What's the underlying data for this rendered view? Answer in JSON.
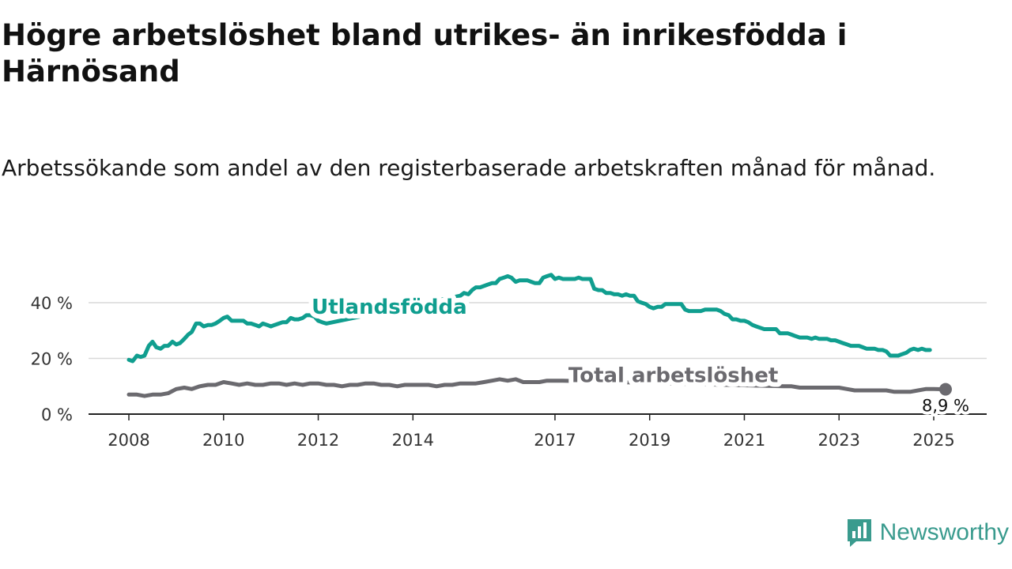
{
  "header": {
    "title": "Högre arbetslöshet bland utrikes- än inrikesfödda i Härnösand",
    "subtitle": "Arbetssökande som andel av den registerbaserade arbetskraften månad för månad."
  },
  "brand": {
    "name": "Newsworthy",
    "color": "#3a9b8e",
    "icon": "bar-chart-logo-icon"
  },
  "chart_data": {
    "type": "line",
    "ylim": [
      0,
      55
    ],
    "xlim": [
      2008.0,
      2025.6
    ],
    "grid": true,
    "y_ticks": [
      0,
      20,
      40
    ],
    "y_tick_labels": [
      "0 %",
      "20 %",
      "40 %"
    ],
    "x_ticks": [
      2008,
      2010,
      2012,
      2014,
      2017,
      2019,
      2021,
      2023,
      2025
    ],
    "x_tick_labels": [
      "2008",
      "2010",
      "2012",
      "2014",
      "2017",
      "2019",
      "2021",
      "2023",
      "2025"
    ],
    "series": [
      {
        "name": "Utlandsfödda",
        "color": "#109e8f",
        "points": [
          [
            2008.0,
            19.5
          ],
          [
            2008.08,
            19.0
          ],
          [
            2008.17,
            21.0
          ],
          [
            2008.25,
            20.5
          ],
          [
            2008.33,
            21.0
          ],
          [
            2008.42,
            24.5
          ],
          [
            2008.5,
            26.0
          ],
          [
            2008.58,
            24.0
          ],
          [
            2008.67,
            23.5
          ],
          [
            2008.75,
            24.5
          ],
          [
            2008.83,
            24.5
          ],
          [
            2008.92,
            26.0
          ],
          [
            2009.0,
            25.0
          ],
          [
            2009.08,
            25.5
          ],
          [
            2009.17,
            27.0
          ],
          [
            2009.25,
            28.5
          ],
          [
            2009.33,
            29.5
          ],
          [
            2009.42,
            32.5
          ],
          [
            2009.5,
            32.5
          ],
          [
            2009.58,
            31.5
          ],
          [
            2009.67,
            32.0
          ],
          [
            2009.75,
            32.0
          ],
          [
            2009.83,
            32.5
          ],
          [
            2009.92,
            33.5
          ],
          [
            2010.0,
            34.5
          ],
          [
            2010.08,
            35.0
          ],
          [
            2010.17,
            33.5
          ],
          [
            2010.25,
            33.5
          ],
          [
            2010.33,
            33.5
          ],
          [
            2010.42,
            33.5
          ],
          [
            2010.5,
            32.5
          ],
          [
            2010.58,
            32.5
          ],
          [
            2010.67,
            32.0
          ],
          [
            2010.75,
            31.5
          ],
          [
            2010.83,
            32.5
          ],
          [
            2010.92,
            32.0
          ],
          [
            2011.0,
            31.5
          ],
          [
            2011.08,
            32.0
          ],
          [
            2011.17,
            32.5
          ],
          [
            2011.25,
            33.0
          ],
          [
            2011.33,
            33.0
          ],
          [
            2011.42,
            34.5
          ],
          [
            2011.5,
            34.0
          ],
          [
            2011.58,
            34.0
          ],
          [
            2011.67,
            34.5
          ],
          [
            2011.75,
            35.5
          ],
          [
            2011.83,
            35.5
          ],
          [
            2011.92,
            35.0
          ],
          [
            2012.0,
            33.5
          ],
          [
            2012.08,
            33.0
          ],
          [
            2012.17,
            32.5
          ],
          [
            2015.0,
            42.5
          ],
          [
            2015.08,
            43.5
          ],
          [
            2015.17,
            43.0
          ],
          [
            2015.25,
            44.5
          ],
          [
            2015.33,
            45.5
          ],
          [
            2015.42,
            45.5
          ],
          [
            2015.5,
            46.0
          ],
          [
            2015.58,
            46.5
          ],
          [
            2015.67,
            47.0
          ],
          [
            2015.75,
            47.0
          ],
          [
            2015.83,
            48.5
          ],
          [
            2015.92,
            49.0
          ],
          [
            2016.0,
            49.5
          ],
          [
            2016.08,
            49.0
          ],
          [
            2016.17,
            47.5
          ],
          [
            2016.25,
            48.0
          ],
          [
            2016.33,
            48.0
          ],
          [
            2016.42,
            48.0
          ],
          [
            2016.5,
            47.5
          ],
          [
            2016.58,
            47.0
          ],
          [
            2016.67,
            47.0
          ],
          [
            2016.75,
            49.0
          ],
          [
            2016.83,
            49.5
          ],
          [
            2016.92,
            50.0
          ],
          [
            2017.0,
            48.5
          ],
          [
            2017.08,
            49.0
          ],
          [
            2017.17,
            48.5
          ],
          [
            2017.25,
            48.5
          ],
          [
            2017.33,
            48.5
          ],
          [
            2017.42,
            48.5
          ],
          [
            2017.5,
            49.0
          ],
          [
            2017.58,
            48.5
          ],
          [
            2017.67,
            48.5
          ],
          [
            2017.75,
            48.5
          ],
          [
            2017.83,
            45.0
          ],
          [
            2017.92,
            44.5
          ],
          [
            2018.0,
            44.5
          ],
          [
            2018.08,
            43.5
          ],
          [
            2018.17,
            43.5
          ],
          [
            2018.25,
            43.0
          ],
          [
            2018.33,
            43.0
          ],
          [
            2018.42,
            42.5
          ],
          [
            2018.5,
            43.0
          ],
          [
            2018.58,
            42.5
          ],
          [
            2018.67,
            42.5
          ],
          [
            2018.75,
            40.5
          ],
          [
            2018.83,
            40.0
          ],
          [
            2018.92,
            39.5
          ],
          [
            2019.0,
            38.5
          ],
          [
            2019.08,
            38.0
          ],
          [
            2019.17,
            38.5
          ],
          [
            2019.25,
            38.5
          ],
          [
            2019.33,
            39.5
          ],
          [
            2019.42,
            39.5
          ],
          [
            2019.5,
            39.5
          ],
          [
            2019.58,
            39.5
          ],
          [
            2019.67,
            39.5
          ],
          [
            2019.75,
            37.5
          ],
          [
            2019.83,
            37.0
          ],
          [
            2019.92,
            37.0
          ],
          [
            2020.0,
            37.0
          ],
          [
            2020.08,
            37.0
          ],
          [
            2020.17,
            37.5
          ],
          [
            2020.25,
            37.5
          ],
          [
            2020.33,
            37.5
          ],
          [
            2020.42,
            37.5
          ],
          [
            2020.5,
            37.0
          ],
          [
            2020.58,
            36.0
          ],
          [
            2020.67,
            35.5
          ],
          [
            2020.75,
            34.0
          ],
          [
            2020.83,
            34.0
          ],
          [
            2020.92,
            33.5
          ],
          [
            2021.0,
            33.5
          ],
          [
            2021.08,
            33.0
          ],
          [
            2021.17,
            32.0
          ],
          [
            2021.25,
            31.5
          ],
          [
            2021.33,
            31.0
          ],
          [
            2021.42,
            30.5
          ],
          [
            2021.5,
            30.5
          ],
          [
            2021.58,
            30.5
          ],
          [
            2021.67,
            30.5
          ],
          [
            2021.75,
            29.0
          ],
          [
            2021.83,
            29.0
          ],
          [
            2021.92,
            29.0
          ],
          [
            2022.0,
            28.5
          ],
          [
            2022.08,
            28.0
          ],
          [
            2022.17,
            27.5
          ],
          [
            2022.25,
            27.5
          ],
          [
            2022.33,
            27.5
          ],
          [
            2022.42,
            27.0
          ],
          [
            2022.5,
            27.5
          ],
          [
            2022.58,
            27.0
          ],
          [
            2022.67,
            27.0
          ],
          [
            2022.75,
            27.0
          ],
          [
            2022.83,
            26.5
          ],
          [
            2022.92,
            26.5
          ],
          [
            2023.0,
            26.0
          ],
          [
            2023.08,
            25.5
          ],
          [
            2023.17,
            25.0
          ],
          [
            2023.25,
            24.5
          ],
          [
            2023.33,
            24.5
          ],
          [
            2023.42,
            24.5
          ],
          [
            2023.5,
            24.0
          ],
          [
            2023.58,
            23.5
          ],
          [
            2023.67,
            23.5
          ],
          [
            2023.75,
            23.5
          ],
          [
            2023.83,
            23.0
          ],
          [
            2023.92,
            23.0
          ],
          [
            2024.0,
            22.5
          ],
          [
            2024.08,
            21.0
          ],
          [
            2024.17,
            21.0
          ],
          [
            2024.25,
            21.0
          ],
          [
            2024.33,
            21.5
          ],
          [
            2024.42,
            22.0
          ],
          [
            2024.5,
            23.0
          ],
          [
            2024.58,
            23.5
          ],
          [
            2024.67,
            23.0
          ],
          [
            2024.75,
            23.5
          ],
          [
            2024.83,
            23.0
          ],
          [
            2024.92,
            23.0
          ]
        ]
      },
      {
        "name": "Total arbetslöshet",
        "color": "#6b6a6f",
        "points": [
          [
            2008.0,
            7.0
          ],
          [
            2008.17,
            7.0
          ],
          [
            2008.33,
            6.5
          ],
          [
            2008.5,
            7.0
          ],
          [
            2008.67,
            7.0
          ],
          [
            2008.83,
            7.5
          ],
          [
            2009.0,
            9.0
          ],
          [
            2009.17,
            9.5
          ],
          [
            2009.33,
            9.0
          ],
          [
            2009.5,
            10.0
          ],
          [
            2009.67,
            10.5
          ],
          [
            2009.83,
            10.5
          ],
          [
            2010.0,
            11.5
          ],
          [
            2010.17,
            11.0
          ],
          [
            2010.33,
            10.5
          ],
          [
            2010.5,
            11.0
          ],
          [
            2010.67,
            10.5
          ],
          [
            2010.83,
            10.5
          ],
          [
            2011.0,
            11.0
          ],
          [
            2011.17,
            11.0
          ],
          [
            2011.33,
            10.5
          ],
          [
            2011.5,
            11.0
          ],
          [
            2011.67,
            10.5
          ],
          [
            2011.83,
            11.0
          ],
          [
            2012.0,
            11.0
          ],
          [
            2012.17,
            10.5
          ],
          [
            2012.33,
            10.5
          ],
          [
            2012.5,
            10.0
          ],
          [
            2012.67,
            10.5
          ],
          [
            2012.83,
            10.5
          ],
          [
            2013.0,
            11.0
          ],
          [
            2013.17,
            11.0
          ],
          [
            2013.33,
            10.5
          ],
          [
            2013.5,
            10.5
          ],
          [
            2013.67,
            10.0
          ],
          [
            2013.83,
            10.5
          ],
          [
            2014.0,
            10.5
          ],
          [
            2014.17,
            10.5
          ],
          [
            2014.33,
            10.5
          ],
          [
            2014.5,
            10.0
          ],
          [
            2014.67,
            10.5
          ],
          [
            2014.83,
            10.5
          ],
          [
            2015.0,
            11.0
          ],
          [
            2015.17,
            11.0
          ],
          [
            2015.33,
            11.0
          ],
          [
            2015.5,
            11.5
          ],
          [
            2015.67,
            12.0
          ],
          [
            2015.83,
            12.5
          ],
          [
            2016.0,
            12.0
          ],
          [
            2016.17,
            12.5
          ],
          [
            2016.33,
            11.5
          ],
          [
            2016.5,
            11.5
          ],
          [
            2016.67,
            11.5
          ],
          [
            2016.83,
            12.0
          ],
          [
            2017.0,
            12.0
          ],
          [
            2017.17,
            12.0
          ],
          [
            2021.83,
            10.0
          ],
          [
            2022.0,
            10.0
          ],
          [
            2022.17,
            9.5
          ],
          [
            2022.33,
            9.5
          ],
          [
            2022.5,
            9.5
          ],
          [
            2022.67,
            9.5
          ],
          [
            2022.83,
            9.5
          ],
          [
            2023.0,
            9.5
          ],
          [
            2023.17,
            9.0
          ],
          [
            2023.33,
            8.5
          ],
          [
            2023.5,
            8.5
          ],
          [
            2023.67,
            8.5
          ],
          [
            2023.83,
            8.5
          ],
          [
            2024.0,
            8.5
          ],
          [
            2024.17,
            8.0
          ],
          [
            2024.33,
            8.0
          ],
          [
            2024.5,
            8.0
          ],
          [
            2024.67,
            8.5
          ],
          [
            2024.83,
            9.0
          ],
          [
            2025.0,
            9.0
          ],
          [
            2025.25,
            8.9
          ]
        ]
      }
    ],
    "annotations": [
      {
        "series": "Utlandsfödda",
        "text": "Utlandsfödda",
        "at": [
          2013.5,
          36.0
        ]
      },
      {
        "series": "Total arbetslöshet",
        "text": "Total arbetslöshet",
        "at": [
          2019.5,
          11.5
        ]
      }
    ],
    "last_value": {
      "series": "Total arbetslöshet",
      "x": 2025.25,
      "y": 8.9,
      "text": "8,9 %"
    }
  }
}
